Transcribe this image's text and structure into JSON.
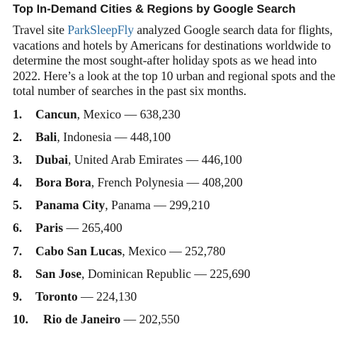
{
  "title": "Top In-Demand Cities & Regions by Google Search",
  "intro": {
    "before_link": "Travel site ",
    "link_text": "ParkSleepFly",
    "after_link": " analyzed Google search data for flights, vacations and hotels by Americans for destinations worldwide to determine the most sought-after holiday spots as we head into 2022. Here’s a look at the top 10 urban and regional spots and the total number of searches in the past six months."
  },
  "items": [
    {
      "rank": "1.",
      "place": "Cancun",
      "region": ", Mexico",
      "searches": " — 638,230"
    },
    {
      "rank": "2.",
      "place": "Bali",
      "region": ", Indonesia",
      "searches": " — 448,100"
    },
    {
      "rank": "3.",
      "place": "Dubai",
      "region": ", United Arab Emirates",
      "searches": " — 446,100"
    },
    {
      "rank": "4.",
      "place": "Bora Bora",
      "region": ", French Polynesia",
      "searches": " — 408,200"
    },
    {
      "rank": "5.",
      "place": "Panama City",
      "region": ", Panama",
      "searches": " — 299,210"
    },
    {
      "rank": "6.",
      "place": "Paris",
      "region": "",
      "searches": " — 265,400"
    },
    {
      "rank": "7.",
      "place": "Cabo San Lucas",
      "region": ", Mexico",
      "searches": " — 252,780"
    },
    {
      "rank": "8.",
      "place": "San Jose",
      "region": ", Dominican Republic",
      "searches": " — 225,690"
    },
    {
      "rank": "9.",
      "place": "Toronto",
      "region": "",
      "searches": " — 224,130"
    },
    {
      "rank": "10.",
      "place": "Rio de Janeiro",
      "region": "",
      "searches": " — 202,550"
    }
  ]
}
